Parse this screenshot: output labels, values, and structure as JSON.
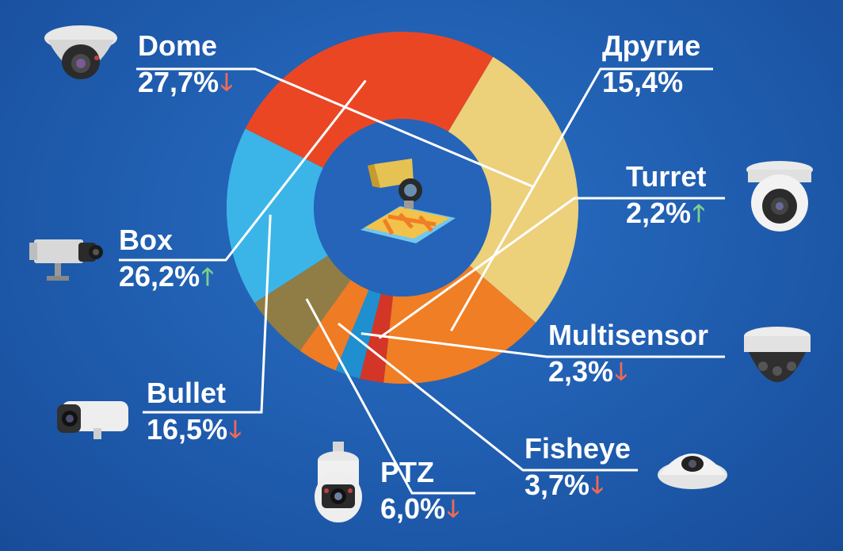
{
  "chart_data": {
    "type": "pie",
    "style": "donut",
    "slices": [
      {
        "key": "dome",
        "label": "Dome",
        "value_text": "27,7%",
        "trend": "down",
        "color": "#ecd07a"
      },
      {
        "key": "other",
        "label": "Другие",
        "value_text": "15,4%",
        "trend": "none",
        "color": "#f07e24"
      },
      {
        "key": "turret",
        "label": "Turret",
        "value_text": "2,2%",
        "trend": "up",
        "color": "#d33626"
      },
      {
        "key": "multisensor",
        "label": "Multisensor",
        "value_text": "2,3%",
        "trend": "down",
        "color": "#1f8fcf"
      },
      {
        "key": "fisheye",
        "label": "Fisheye",
        "value_text": "3,7%",
        "trend": "down",
        "color": "#ef7b25"
      },
      {
        "key": "ptz",
        "label": "PTZ",
        "value_text": "6,0%",
        "trend": "down",
        "color": "#8f7d45"
      },
      {
        "key": "bullet",
        "label": "Bullet",
        "value_text": "16,5%",
        "trend": "down",
        "color": "#3bb5e8"
      },
      {
        "key": "box",
        "label": "Box",
        "value_text": "26,2%",
        "trend": "up",
        "color": "#ea4624"
      }
    ],
    "values": [
      27.7,
      15.4,
      2.2,
      2.3,
      3.7,
      6.0,
      16.5,
      26.2
    ],
    "arrows": {
      "down": "🡓",
      "up": "🡑"
    },
    "center_icon": "surveillance-camera-building-icon"
  }
}
